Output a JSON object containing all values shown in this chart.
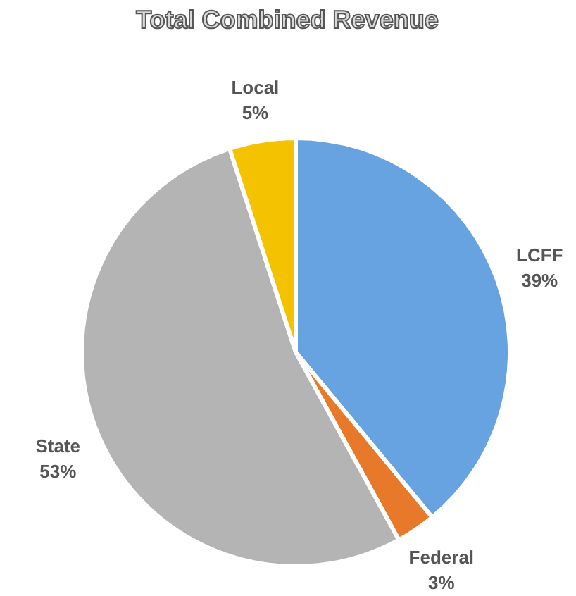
{
  "chart_data": {
    "type": "pie",
    "title": "Total Combined Revenue",
    "categories": [
      "LCFF",
      "Federal",
      "State",
      "Local"
    ],
    "values": [
      39,
      3,
      53,
      5
    ],
    "value_labels": [
      "39%",
      "3%",
      "53%",
      "5%"
    ],
    "colors": [
      "#66a3e0",
      "#e8792a",
      "#b4b4b4",
      "#f5c200"
    ],
    "legend": false
  }
}
